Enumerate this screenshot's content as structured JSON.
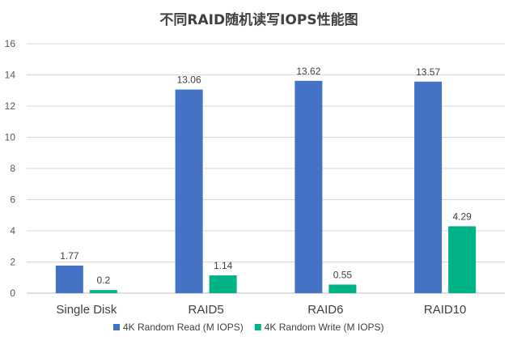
{
  "chart_data": {
    "type": "bar",
    "title": "不同RAID随机读写IOPS性能图",
    "xlabel": "",
    "ylabel": "",
    "categories": [
      "Single Disk",
      "RAID5",
      "RAID6",
      "RAID10"
    ],
    "series": [
      {
        "name": "4K Random Read (M IOPS)",
        "values": [
          1.77,
          13.06,
          13.62,
          13.57
        ],
        "labels": [
          "1.77",
          "13.06",
          "13.62",
          "13.57"
        ],
        "color": "#4472C4"
      },
      {
        "name": "4K Random Write (M IOPS)",
        "values": [
          0.2,
          1.14,
          0.55,
          4.29
        ],
        "labels": [
          "0.2",
          "1.14",
          "0.55",
          "4.29"
        ],
        "color": "#00B386"
      }
    ],
    "ylim": [
      0,
      16
    ],
    "yticks": [
      0,
      2,
      4,
      6,
      8,
      10,
      12,
      14,
      16
    ],
    "grid": true,
    "legend": "bottom"
  }
}
